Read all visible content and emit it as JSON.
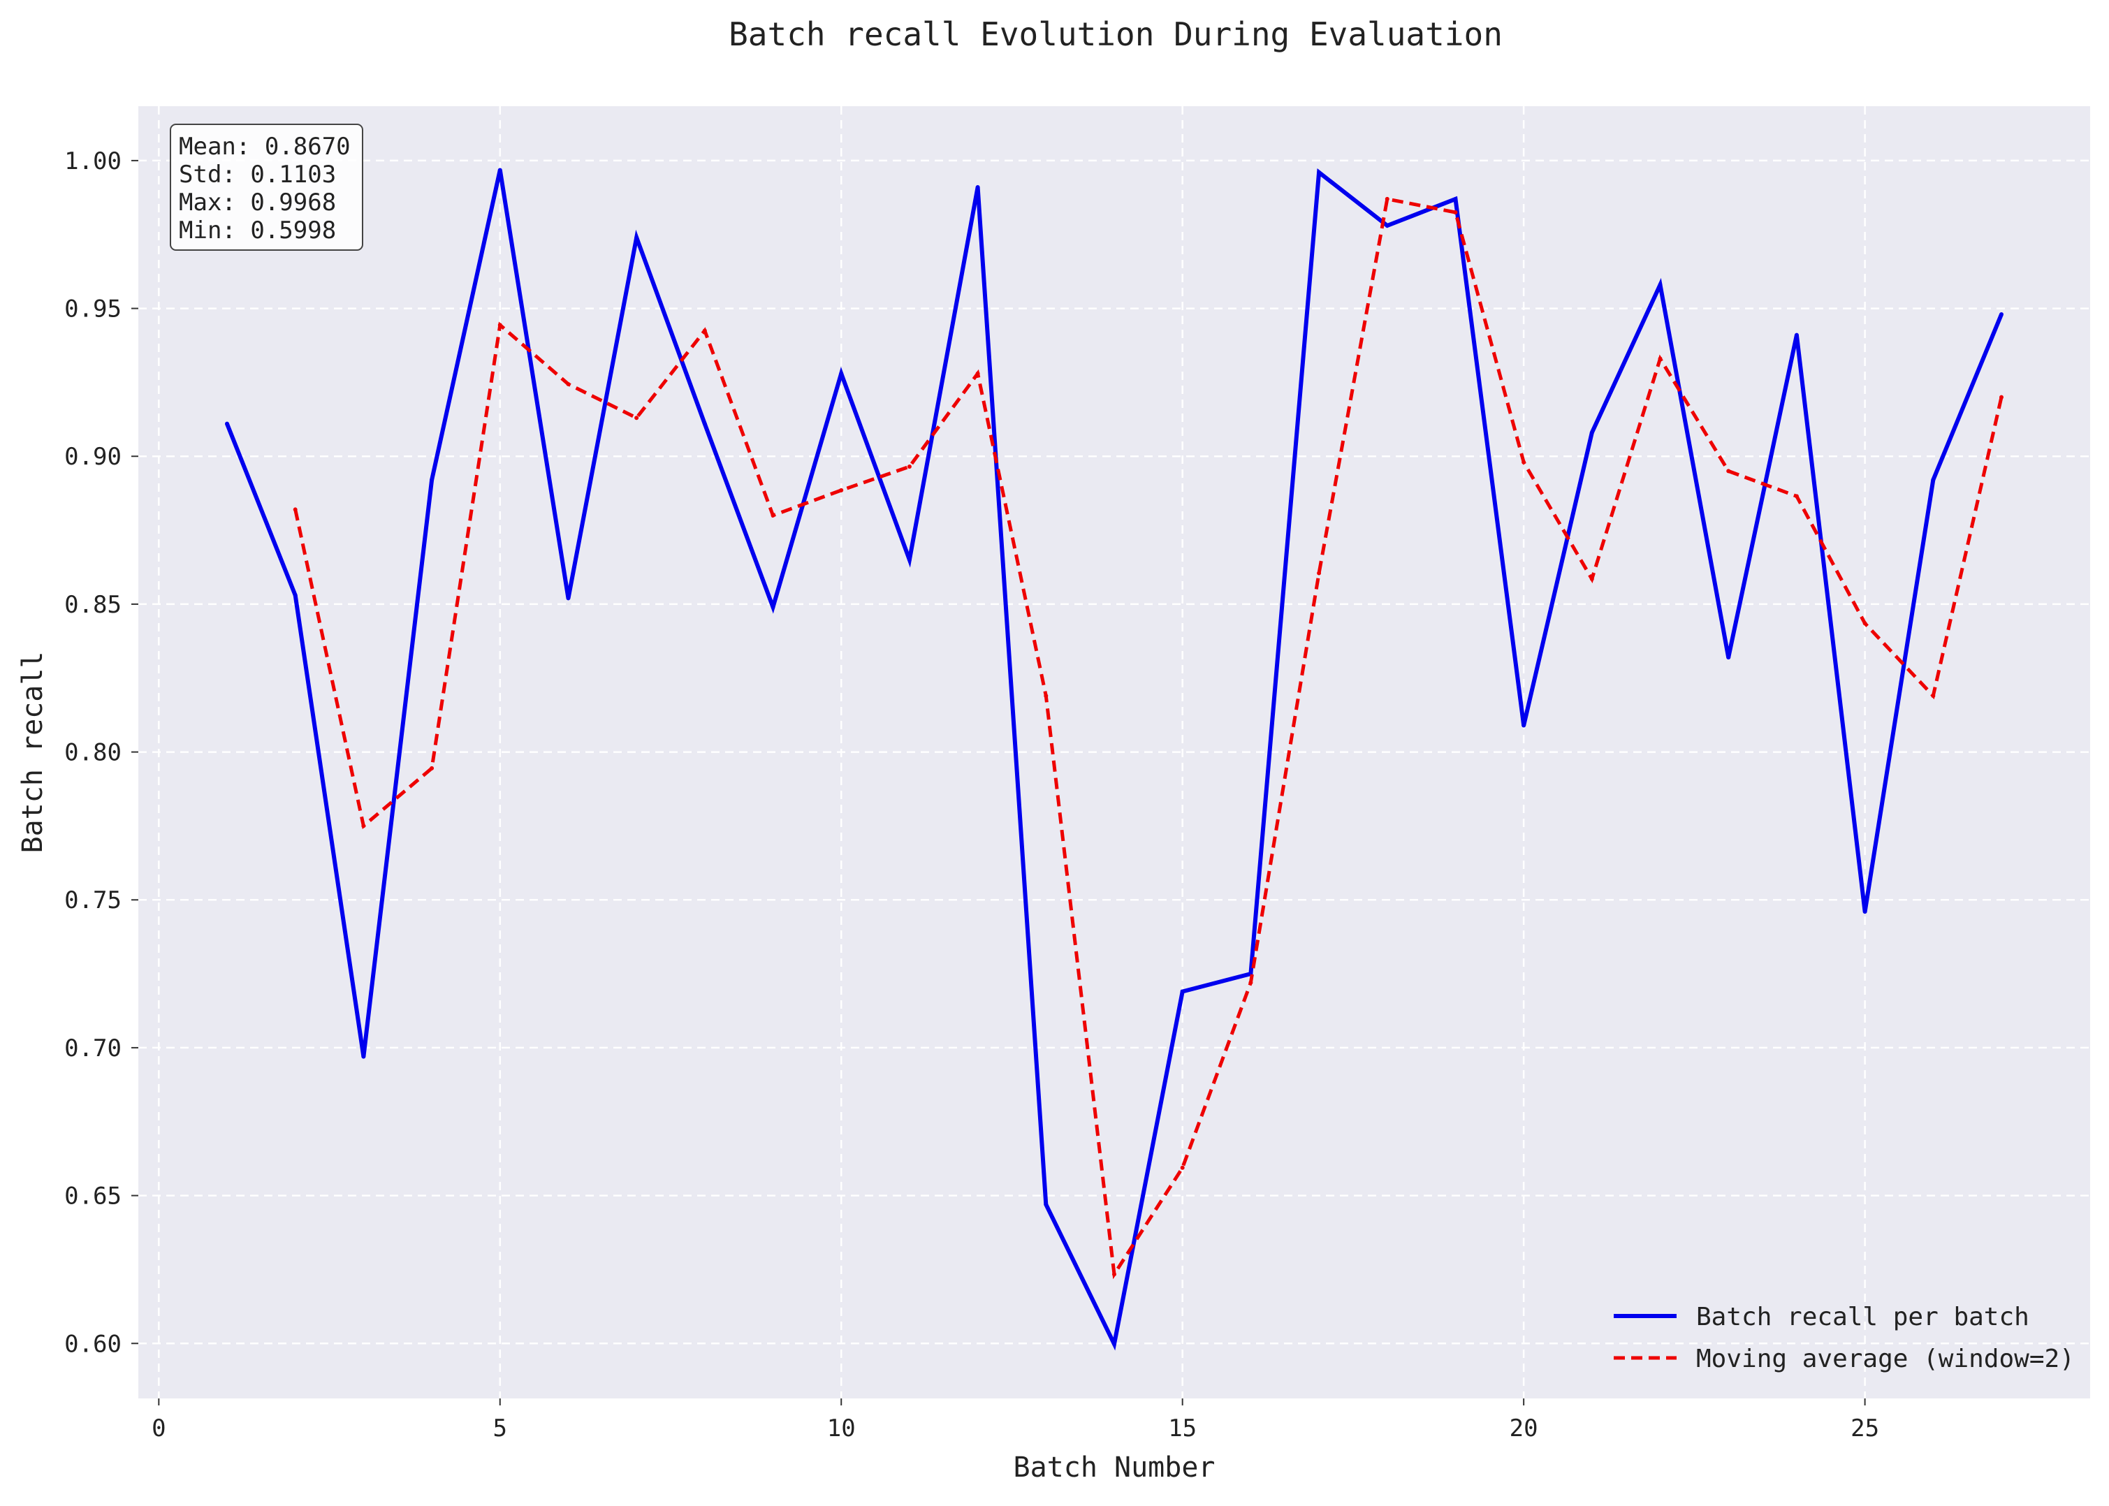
{
  "chart_data": {
    "type": "line",
    "title": "Batch recall Evolution During Evaluation",
    "xlabel": "Batch Number",
    "ylabel": "Batch recall",
    "xlim": [
      -0.3,
      28.3
    ],
    "ylim": [
      0.5814,
      1.0184
    ],
    "xticks": [
      0,
      5,
      10,
      15,
      20,
      25
    ],
    "yticks": [
      0.6,
      0.65,
      0.7,
      0.75,
      0.8,
      0.85,
      0.9,
      0.95,
      1.0
    ],
    "grid": true,
    "legend_position": "lower-right",
    "stats_box": {
      "lines": [
        "Mean: 0.8670",
        "Std: 0.1103",
        "Max: 0.9968",
        "Min: 0.5998"
      ],
      "position": "top-left"
    },
    "series": [
      {
        "name": "Batch recall per batch",
        "color": "#0000ee",
        "style": "solid",
        "x": [
          1,
          2,
          3,
          4,
          5,
          6,
          7,
          8,
          9,
          10,
          11,
          12,
          13,
          14,
          15,
          16,
          17,
          18,
          19,
          20,
          21,
          22,
          23,
          24,
          25,
          26,
          27
        ],
        "values": [
          0.911,
          0.853,
          0.697,
          0.892,
          0.9968,
          0.852,
          0.974,
          0.911,
          0.849,
          0.928,
          0.865,
          0.991,
          0.647,
          0.5998,
          0.719,
          0.725,
          0.996,
          0.978,
          0.987,
          0.809,
          0.908,
          0.958,
          0.832,
          0.941,
          0.746,
          0.892,
          0.948
        ]
      },
      {
        "name": "Moving average (window=2)",
        "color": "#ee0000",
        "style": "dashed",
        "x": [
          2,
          3,
          4,
          5,
          6,
          7,
          8,
          9,
          10,
          11,
          12,
          13,
          14,
          15,
          16,
          17,
          18,
          19,
          20,
          21,
          22,
          23,
          24,
          25,
          26,
          27
        ],
        "values": [
          0.882,
          0.775,
          0.7945,
          0.9444,
          0.9244,
          0.913,
          0.9425,
          0.88,
          0.8885,
          0.8965,
          0.928,
          0.819,
          0.6234,
          0.6594,
          0.722,
          0.8605,
          0.987,
          0.9825,
          0.898,
          0.8585,
          0.933,
          0.895,
          0.8865,
          0.8435,
          0.819,
          0.92
        ]
      }
    ]
  }
}
